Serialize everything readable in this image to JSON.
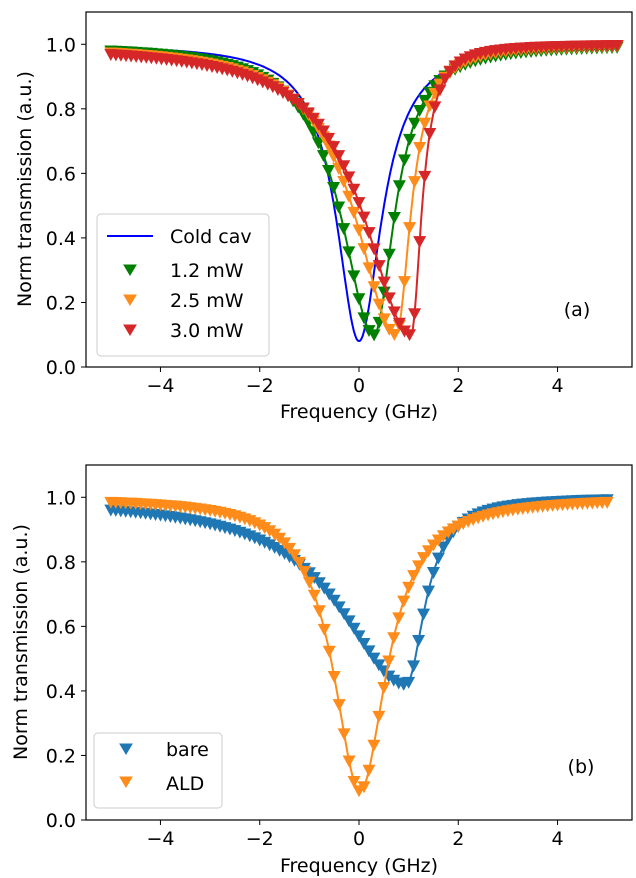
{
  "chart_data": [
    {
      "type": "line",
      "panel_label": "(a)",
      "xlabel": "Frequency (GHz)",
      "ylabel": "Norm transmission (a.u.)",
      "xlim": [
        -5.5,
        5.5
      ],
      "ylim": [
        0.0,
        1.1
      ],
      "xticks": [
        -4,
        -2,
        0,
        2,
        4
      ],
      "xtick_labels": [
        "−4",
        "−2",
        "0",
        "2",
        "4"
      ],
      "yticks": [
        0.0,
        0.2,
        0.4,
        0.6,
        0.8,
        1.0
      ],
      "ytick_labels": [
        "0.0",
        "0.2",
        "0.4",
        "0.6",
        "0.8",
        "1.0"
      ],
      "grid": false,
      "legend_position": "lower-left",
      "series": [
        {
          "name": "Cold cav",
          "kind": "line",
          "color": "#0000ff",
          "x_range": [
            -3.8,
            5.0
          ],
          "center": 0.0,
          "min": 0.08,
          "width_left": 0.55,
          "width_right": 0.55
        },
        {
          "name": "1.2 mW",
          "kind": "markers+fit",
          "color": "#008000",
          "x_range": [
            -5.0,
            5.2
          ],
          "center": 0.3,
          "min": 0.1,
          "width_left": 0.8,
          "width_right": 0.5
        },
        {
          "name": "2.5 mW",
          "kind": "markers+fit",
          "color": "#ff8c1a",
          "x_range": [
            -5.0,
            5.2
          ],
          "center": 0.75,
          "min": 0.1,
          "width_left": 1.0,
          "width_right": 0.35
        },
        {
          "name": "3.0 mW",
          "kind": "markers+fit",
          "color": "#d62728",
          "x_range": [
            -5.0,
            5.2
          ],
          "center": 1.05,
          "min": 0.1,
          "width_left": 1.15,
          "width_right": 0.25
        }
      ]
    },
    {
      "type": "line",
      "panel_label": "(b)",
      "xlabel": "Frequency (GHz)",
      "ylabel": "Norm transmission (a.u.)",
      "xlim": [
        -5.5,
        5.5
      ],
      "ylim": [
        0.0,
        1.1
      ],
      "xticks": [
        -4,
        -2,
        0,
        2,
        4
      ],
      "xtick_labels": [
        "−4",
        "−2",
        "0",
        "2",
        "4"
      ],
      "yticks": [
        0.0,
        0.2,
        0.4,
        0.6,
        0.8,
        1.0
      ],
      "ytick_labels": [
        "0.0",
        "0.2",
        "0.4",
        "0.6",
        "0.8",
        "1.0"
      ],
      "grid": false,
      "legend_position": "lower-left",
      "series": [
        {
          "name": "bare",
          "kind": "markers+fit",
          "color": "#1f77b4",
          "x_range": [
            -5.0,
            5.0
          ],
          "center": 0.95,
          "min": 0.42,
          "width_left": 1.6,
          "width_right": 0.45
        },
        {
          "name": "ALD",
          "kind": "markers+fit",
          "color": "#ff8c1a",
          "x_range": [
            -5.0,
            5.0
          ],
          "center": 0.02,
          "min": 0.09,
          "width_left": 0.65,
          "width_right": 0.65
        }
      ]
    }
  ]
}
